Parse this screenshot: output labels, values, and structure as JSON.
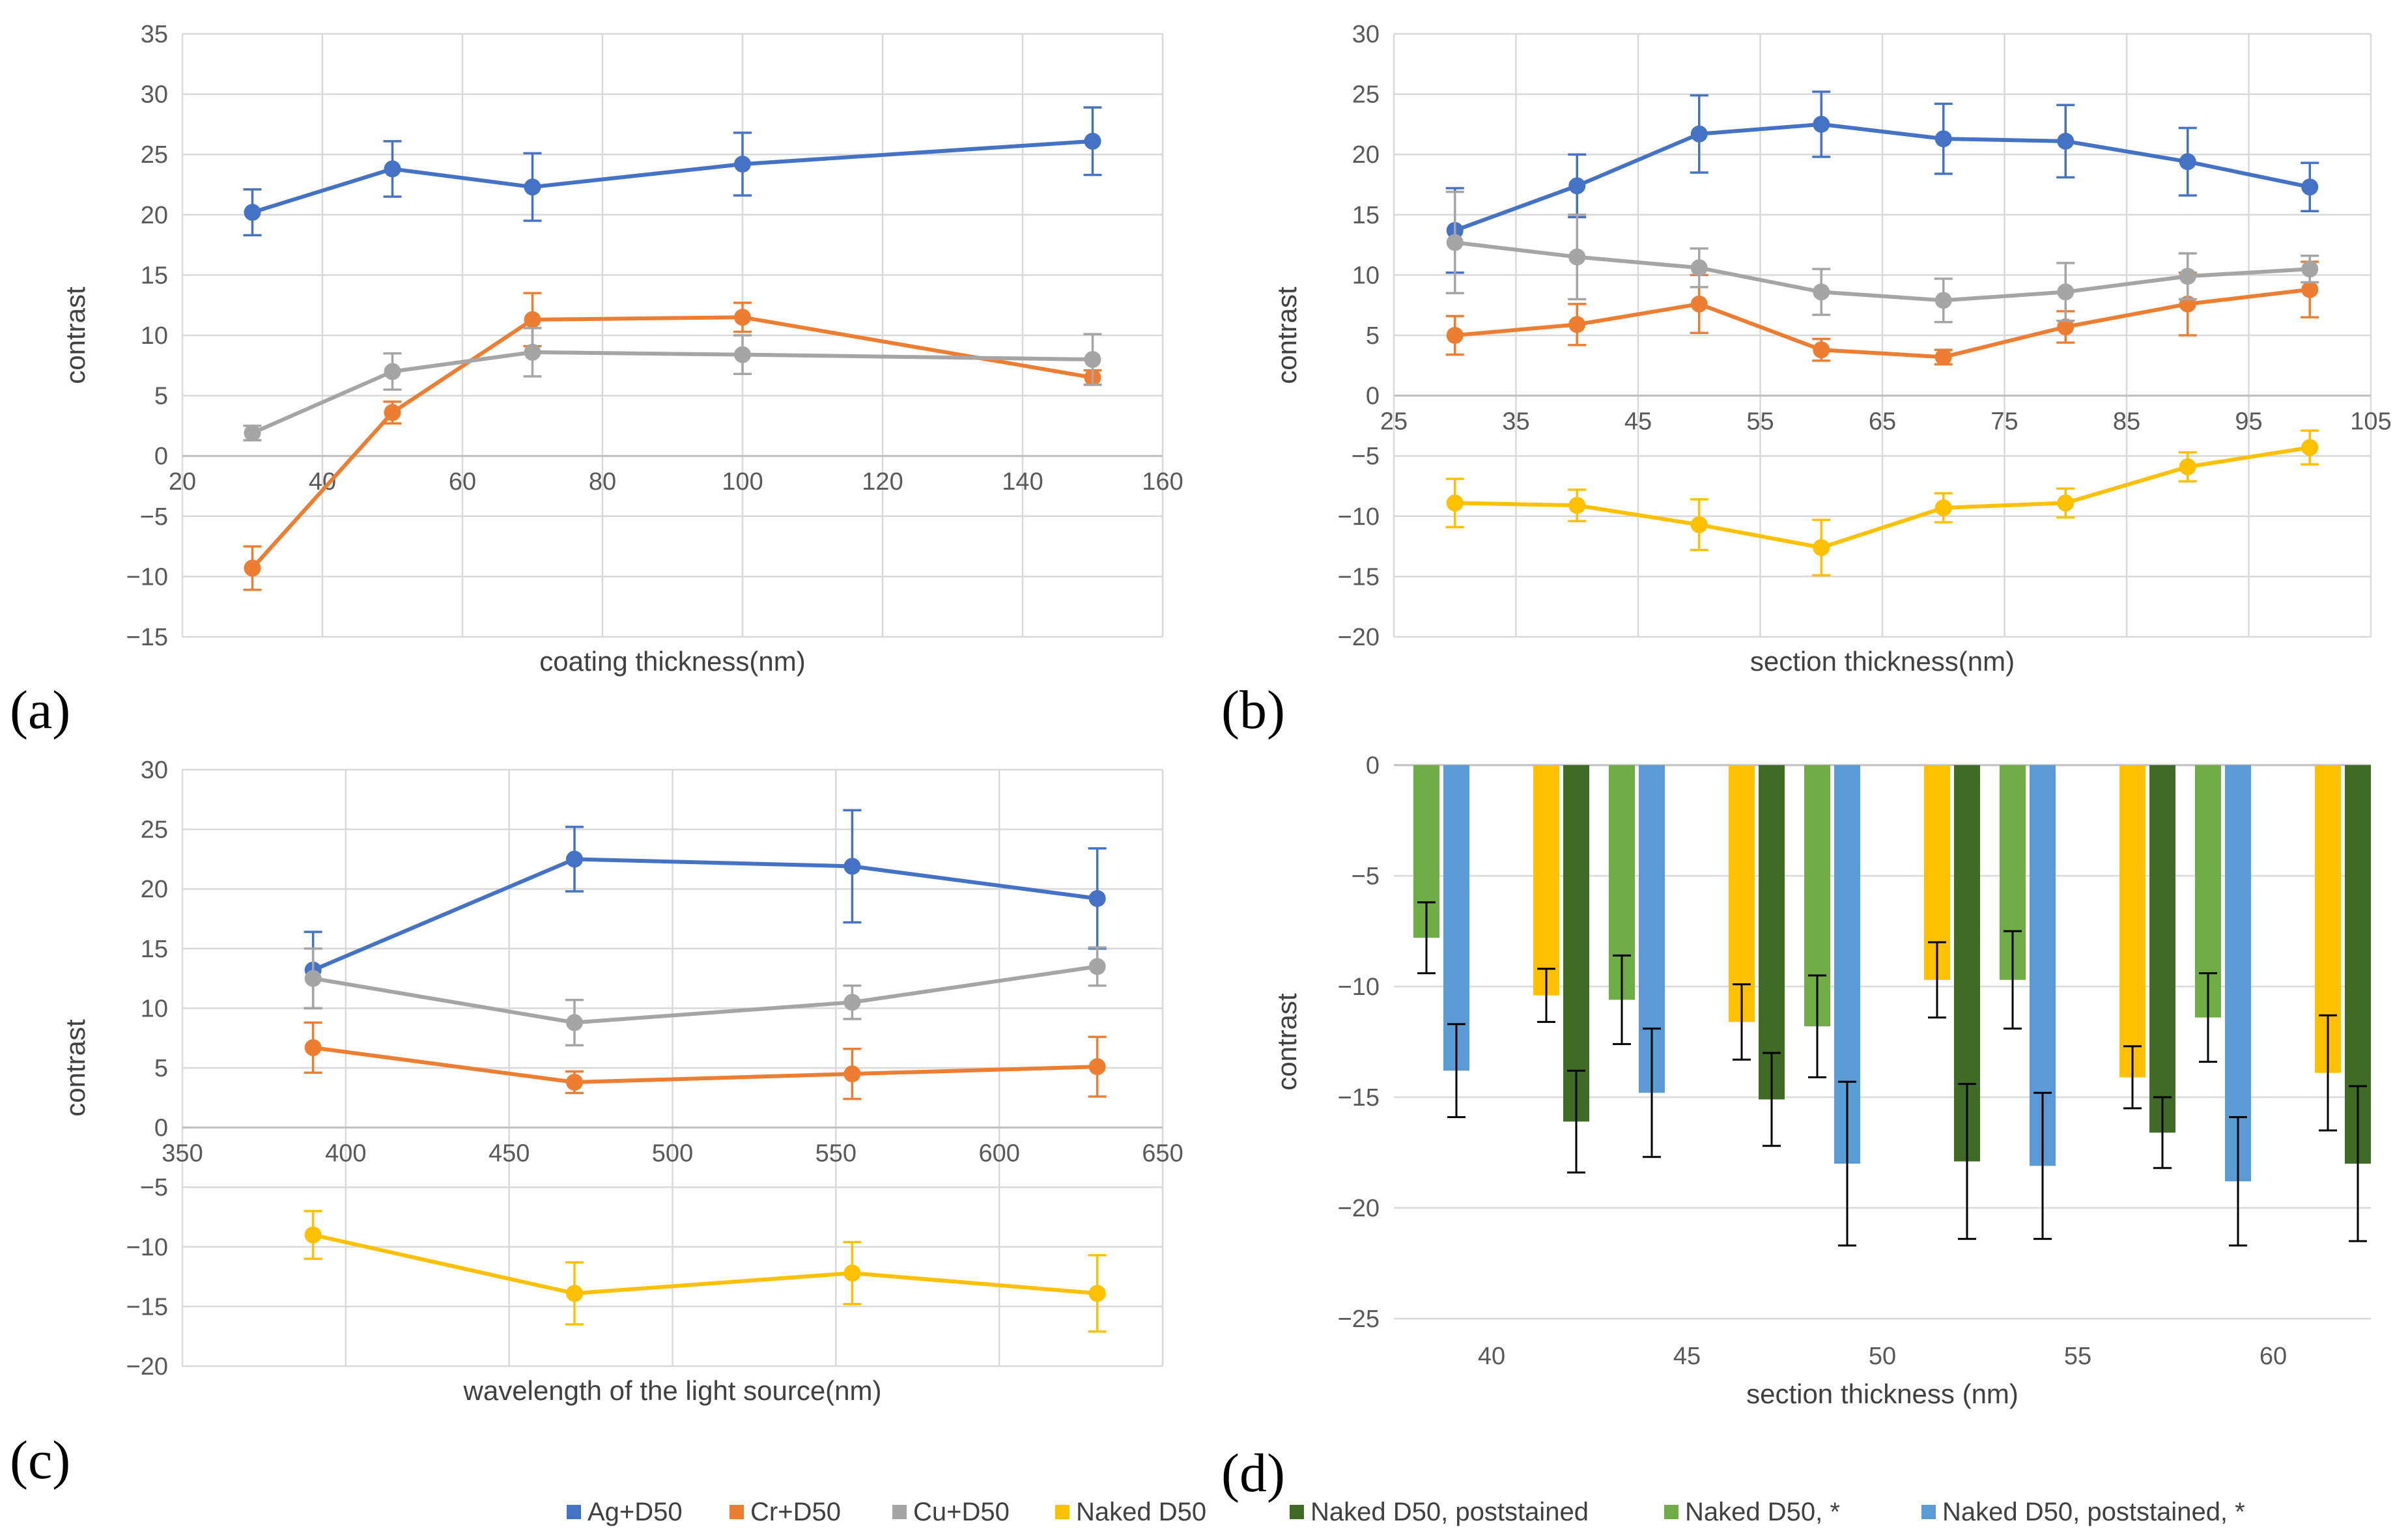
{
  "panel_labels": [
    "(a)",
    "(b)",
    "(c)",
    "(d)"
  ],
  "colors": {
    "Ag+D50": "#4472C4",
    "Cr+D50": "#ED7D31",
    "Cu+D50": "#A5A5A5",
    "Naked D50": "#FFC000",
    "Naked D50, poststained": "#3F6B27",
    "Naked D50, *": "#70AD47",
    "Naked D50, poststained, *": "#5B9BD5"
  },
  "legend": {
    "items": [
      {
        "label": "Ag+D50",
        "color": "#4472C4"
      },
      {
        "label": "Cr+D50",
        "color": "#ED7D31"
      },
      {
        "label": "Cu+D50",
        "color": "#A5A5A5"
      },
      {
        "label": "Naked D50",
        "color": "#FFC000"
      },
      {
        "label": "Naked D50, poststained",
        "color": "#3F6B27"
      },
      {
        "label": "Naked D50, *",
        "color": "#70AD47"
      },
      {
        "label": "Naked D50, poststained, *",
        "color": "#5B9BD5"
      }
    ]
  },
  "chart_data": [
    {
      "panel": "(a)",
      "type": "line",
      "xlabel": "coating thickness(nm)",
      "ylabel": "contrast",
      "xlim": [
        20,
        160
      ],
      "xticks": [
        20,
        40,
        60,
        80,
        100,
        120,
        140,
        160
      ],
      "ylim": [
        -15,
        35
      ],
      "yticks": [
        -15,
        -10,
        -5,
        0,
        5,
        10,
        15,
        20,
        25,
        30,
        35
      ],
      "x": [
        30,
        50,
        70,
        100,
        150
      ],
      "series": [
        {
          "name": "Ag+D50",
          "values": [
            20.2,
            23.8,
            22.3,
            24.2,
            26.1
          ],
          "errors": [
            1.9,
            2.3,
            2.8,
            2.6,
            2.8
          ]
        },
        {
          "name": "Cr+D50",
          "values": [
            -9.3,
            3.6,
            11.3,
            11.5,
            6.5
          ],
          "errors": [
            1.8,
            0.9,
            2.2,
            1.2,
            0.6
          ]
        },
        {
          "name": "Cu+D50",
          "values": [
            1.9,
            7.0,
            8.6,
            8.4,
            8.0
          ],
          "errors": [
            0.6,
            1.5,
            2.0,
            1.6,
            2.1
          ]
        }
      ]
    },
    {
      "panel": "(b)",
      "type": "line",
      "xlabel": "section thickness(nm)",
      "ylabel": "contrast",
      "xlim": [
        25,
        105
      ],
      "xticks": [
        25,
        35,
        45,
        55,
        65,
        75,
        85,
        95,
        105
      ],
      "ylim": [
        -20,
        30
      ],
      "yticks": [
        -20,
        -15,
        -10,
        -5,
        0,
        5,
        10,
        15,
        20,
        25,
        30
      ],
      "x": [
        30,
        40,
        50,
        60,
        70,
        80,
        90,
        100
      ],
      "series": [
        {
          "name": "Ag+D50",
          "values": [
            13.7,
            17.4,
            21.7,
            22.5,
            21.3,
            21.1,
            19.4,
            17.3
          ],
          "errors": [
            3.5,
            2.6,
            3.2,
            2.7,
            2.9,
            3.0,
            2.8,
            2.0
          ]
        },
        {
          "name": "Cr+D50",
          "values": [
            5.0,
            5.9,
            7.6,
            3.8,
            3.2,
            5.7,
            7.6,
            8.8
          ],
          "errors": [
            1.6,
            1.7,
            2.4,
            0.9,
            0.6,
            1.3,
            2.6,
            2.3
          ]
        },
        {
          "name": "Cu+D50",
          "values": [
            12.7,
            11.5,
            10.6,
            8.6,
            7.9,
            8.6,
            9.9,
            10.5
          ],
          "errors": [
            4.2,
            3.5,
            1.6,
            1.9,
            1.8,
            2.4,
            1.9,
            1.1
          ]
        },
        {
          "name": "Naked D50",
          "values": [
            -8.9,
            -9.1,
            -10.7,
            -12.6,
            -9.3,
            -8.9,
            -5.9,
            -4.3
          ],
          "errors": [
            2.0,
            1.3,
            2.1,
            2.3,
            1.2,
            1.2,
            1.2,
            1.4
          ]
        }
      ]
    },
    {
      "panel": "(c)",
      "type": "line",
      "xlabel": "wavelength of the light source(nm)",
      "ylabel": "contrast",
      "xlim": [
        350,
        650
      ],
      "xticks": [
        350,
        400,
        450,
        500,
        550,
        600,
        650
      ],
      "ylim": [
        -20,
        30
      ],
      "yticks": [
        -20,
        -15,
        -10,
        -5,
        0,
        5,
        10,
        15,
        20,
        25,
        30
      ],
      "x": [
        390,
        470,
        555,
        630
      ],
      "series": [
        {
          "name": "Ag+D50",
          "values": [
            13.2,
            22.5,
            21.9,
            19.2
          ],
          "errors": [
            3.2,
            2.7,
            4.7,
            4.2
          ]
        },
        {
          "name": "Cr+D50",
          "values": [
            6.7,
            3.8,
            4.5,
            5.1
          ],
          "errors": [
            2.1,
            0.9,
            2.1,
            2.5
          ]
        },
        {
          "name": "Cu+D50",
          "values": [
            12.5,
            8.8,
            10.5,
            13.5
          ],
          "errors": [
            2.5,
            1.9,
            1.4,
            1.6
          ]
        },
        {
          "name": "Naked D50",
          "values": [
            -9.0,
            -13.9,
            -12.2,
            -13.9
          ],
          "errors": [
            2.0,
            2.6,
            2.6,
            3.2
          ]
        }
      ]
    },
    {
      "panel": "(d)",
      "type": "bar",
      "xlabel": "section thickness (nm)",
      "ylabel": "contrast",
      "ylim": [
        -25,
        0
      ],
      "yticks": [
        -25,
        -20,
        -15,
        -10,
        -5,
        0
      ],
      "categories": [
        "40",
        "45",
        "50",
        "55",
        "60"
      ],
      "series": [
        {
          "name": "Naked D50, *",
          "values": [
            -7.8,
            -10.6,
            -11.8,
            -9.7,
            -11.4
          ],
          "errors": [
            1.6,
            2.0,
            2.3,
            2.2,
            2.0
          ]
        },
        {
          "name": "Naked D50, poststained, *",
          "values": [
            -13.8,
            -14.8,
            -18.0,
            -18.1,
            -18.8
          ],
          "errors": [
            2.1,
            2.9,
            3.7,
            3.3,
            2.9
          ]
        },
        {
          "name": "Naked D50",
          "values": [
            -10.4,
            -11.6,
            -9.7,
            -14.1,
            -13.9
          ],
          "errors": [
            1.2,
            1.7,
            1.7,
            1.4,
            2.6
          ]
        },
        {
          "name": "Naked D50, poststained",
          "values": [
            -16.1,
            -15.1,
            -17.9,
            -16.6,
            -18.0
          ],
          "errors": [
            2.3,
            2.1,
            3.5,
            1.6,
            3.5
          ]
        }
      ]
    }
  ]
}
